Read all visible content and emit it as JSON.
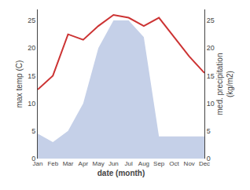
{
  "chart_data": {
    "type": "line",
    "xlabel": "date (month)",
    "ylabel": "max temp (C)",
    "y2label": "med. precipitation\n(kg/m2)",
    "categories": [
      "Jan",
      "Feb",
      "Mar",
      "Apr",
      "May",
      "Jun",
      "Jul",
      "Aug",
      "Sep",
      "Oct",
      "Nov",
      "Dec"
    ],
    "series": [
      {
        "type": "area",
        "color": "#c5d0e8",
        "values": [
          4.5,
          3.0,
          5.0,
          10.0,
          20.0,
          25.0,
          25.0,
          22.0,
          4.0,
          4.0,
          4.0,
          4.0
        ]
      },
      {
        "type": "line",
        "color": "#cc3333",
        "axis": "y2",
        "values": [
          12.5,
          15.0,
          22.5,
          21.5,
          24.0,
          26.0,
          25.5,
          24.0,
          25.5,
          22.0,
          18.5,
          15.5
        ]
      }
    ],
    "ylim": [
      0,
      27
    ],
    "yticks": [
      0,
      5,
      10,
      15,
      20,
      25
    ],
    "y2lim": [
      0,
      27
    ],
    "y2ticks": [
      0,
      5,
      10,
      15,
      20,
      25
    ],
    "grid": false
  }
}
